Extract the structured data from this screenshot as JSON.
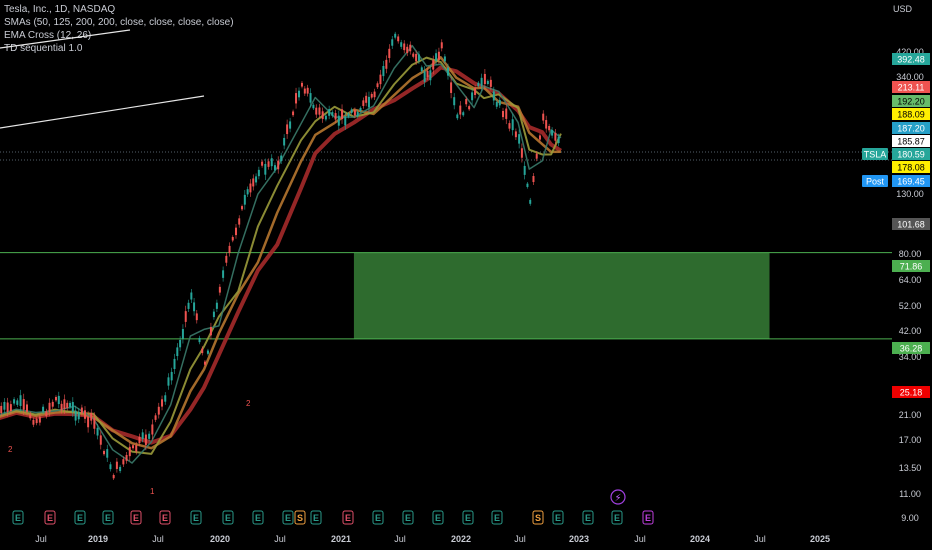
{
  "header": {
    "title": "Tesla, Inc., 1D, NASDAQ",
    "indicators": [
      "SMAs (50, 125, 200, 200, close, close, close, close)",
      "EMA Cross (12, 26)",
      "TD sequential 1.0"
    ],
    "currency": "USD"
  },
  "colors": {
    "background": "#000000",
    "candle_up": "#26a69a",
    "candle_down": "#ef5350",
    "zone_fill": "#2e6b2e",
    "zone_line": "#4caf50",
    "sma_red": "#a52a2a",
    "sma_olive": "#9a9a3a",
    "sma_orange": "#b5762f",
    "sma_teal": "#3a7a6a"
  },
  "chart_data": {
    "type": "line",
    "y_scale": "log",
    "ylim": [
      8.3,
      520
    ],
    "x_axis_ticks": [
      "Jul",
      "2019",
      "Jul",
      "2020",
      "Jul",
      "2021",
      "Jul",
      "2022",
      "Jul",
      "2023",
      "Jul",
      "2024",
      "Jul",
      "2025"
    ],
    "y_axis_ticks": [
      "420.00",
      "340.00",
      "130.00",
      "80.00",
      "64.00",
      "52.00",
      "42.00",
      "34.00",
      "21.00",
      "17.00",
      "13.50",
      "11.00",
      "9.00"
    ],
    "price_labels": [
      {
        "value": "392.48",
        "color": "#26a69a"
      },
      {
        "value": "213.11",
        "color": "#ef5350"
      },
      {
        "value": "192.20",
        "color": "#66bb6a"
      },
      {
        "value": "188.09",
        "color": "#ffee00"
      },
      {
        "value": "187.20",
        "color": "#26a0c8"
      },
      {
        "value": "185.87",
        "color": "#ffffff"
      },
      {
        "value": "180.59",
        "color": "#26a69a",
        "tag": "TSLA"
      },
      {
        "value": "178.08",
        "color": "#ffee00"
      },
      {
        "value": "169.45",
        "color": "#2196f3",
        "tag": "Post"
      },
      {
        "value": "101.68",
        "color": "#555555"
      },
      {
        "value": "71.86",
        "color": "#4caf50"
      },
      {
        "value": "36.28",
        "color": "#4caf50"
      },
      {
        "value": "25.18",
        "color": "#ef0000"
      }
    ],
    "price_path": [
      [
        "2018-06-01",
        20.0
      ],
      [
        "2018-08-01",
        22.0
      ],
      [
        "2018-10-01",
        19.0
      ],
      [
        "2018-12-01",
        22.5
      ],
      [
        "2019-02-01",
        20.5
      ],
      [
        "2019-04-01",
        18.5
      ],
      [
        "2019-06-01",
        12.5
      ],
      [
        "2019-08-01",
        15.0
      ],
      [
        "2019-10-01",
        17.5
      ],
      [
        "2019-12-01",
        27.0
      ],
      [
        "2020-02-01",
        52.0
      ],
      [
        "2020-03-15",
        30.0
      ],
      [
        "2020-05-01",
        55.0
      ],
      [
        "2020-07-01",
        95.0
      ],
      [
        "2020-09-01",
        140.0
      ],
      [
        "2020-11-01",
        145.0
      ],
      [
        "2021-01-15",
        280.0
      ],
      [
        "2021-03-01",
        220.0
      ],
      [
        "2021-05-01",
        205.0
      ],
      [
        "2021-07-01",
        220.0
      ],
      [
        "2021-09-01",
        245.0
      ],
      [
        "2021-11-05",
        400.0
      ],
      [
        "2022-01-01",
        350.0
      ],
      [
        "2022-02-15",
        290.0
      ],
      [
        "2022-04-01",
        360.0
      ],
      [
        "2022-05-20",
        210.0
      ],
      [
        "2022-07-15",
        250.0
      ],
      [
        "2022-08-15",
        295.0
      ],
      [
        "2022-10-01",
        230.0
      ],
      [
        "2022-12-01",
        180.0
      ],
      [
        "2023-01-05",
        110.0
      ],
      [
        "2023-02-15",
        205.0
      ],
      [
        "2023-03-15",
        180.0
      ],
      [
        "2023-04-15",
        180.59
      ]
    ],
    "zone": {
      "x_start": "2021-07-01",
      "x_end": "2025-02-01",
      "y_low": 36.28,
      "y_high": 71.86
    },
    "event_markers": [
      "E",
      "E",
      "E",
      "E",
      "E",
      "E",
      "E",
      "E",
      "E",
      "E",
      "S",
      "E",
      "E",
      "E",
      "E",
      "E",
      "E",
      "E",
      "S",
      "E",
      "E",
      "E",
      "E"
    ],
    "td_labels": [
      "2",
      "1",
      "2"
    ]
  }
}
